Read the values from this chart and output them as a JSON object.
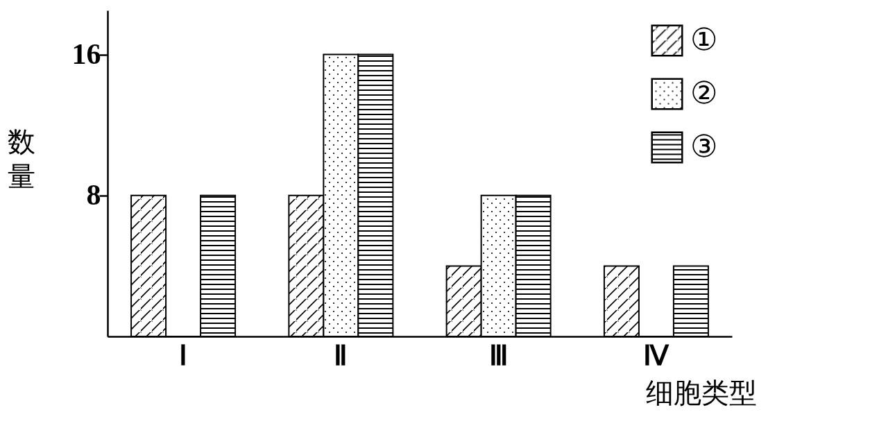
{
  "chart_data": {
    "type": "bar",
    "xlabel": "细胞类型",
    "ylabel": "数量",
    "categories": [
      "Ⅰ",
      "Ⅱ",
      "Ⅲ",
      "Ⅳ"
    ],
    "series": [
      {
        "name": "①",
        "color": "#000000",
        "values": [
          8,
          8,
          4,
          4
        ]
      },
      {
        "name": "②",
        "color": "#000000",
        "values": [
          0,
          16,
          8,
          0
        ]
      },
      {
        "name": "③",
        "color": "#000000",
        "values": [
          8,
          16,
          8,
          4
        ]
      }
    ],
    "ylim": [
      0,
      18.5
    ],
    "yticks": [
      8,
      16
    ],
    "grid": false,
    "legend": "top right"
  }
}
